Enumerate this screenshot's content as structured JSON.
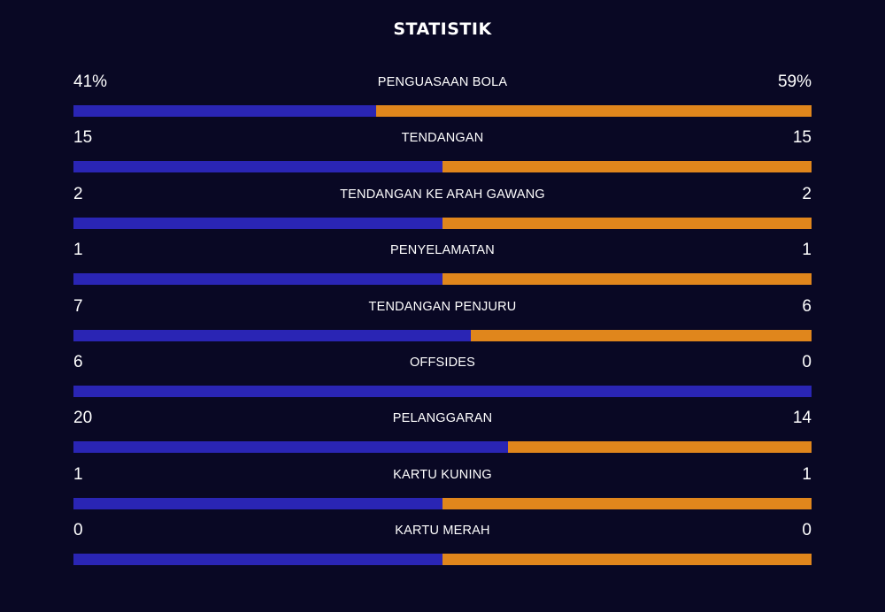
{
  "title": "STATISTIK",
  "colors": {
    "background": "#090824",
    "home": "#2a25b4",
    "away": "#e0861c"
  },
  "stats": [
    {
      "label": "PENGUASAAN BOLA",
      "home": "41%",
      "away": "59%",
      "home_share": 0.41
    },
    {
      "label": "TENDANGAN",
      "home": "15",
      "away": "15",
      "home_share": 0.5
    },
    {
      "label": "TENDANGAN KE ARAH GAWANG",
      "home": "2",
      "away": "2",
      "home_share": 0.5
    },
    {
      "label": "PENYELAMATAN",
      "home": "1",
      "away": "1",
      "home_share": 0.5
    },
    {
      "label": "TENDANGAN PENJURU",
      "home": "7",
      "away": "6",
      "home_share": 0.5385
    },
    {
      "label": "OFFSIDES",
      "home": "6",
      "away": "0",
      "home_share": 1.0
    },
    {
      "label": "PELANGGARAN",
      "home": "20",
      "away": "14",
      "home_share": 0.5882
    },
    {
      "label": "KARTU KUNING",
      "home": "1",
      "away": "1",
      "home_share": 0.5
    },
    {
      "label": "KARTU MERAH",
      "home": "0",
      "away": "0",
      "home_share": 0.5
    }
  ]
}
